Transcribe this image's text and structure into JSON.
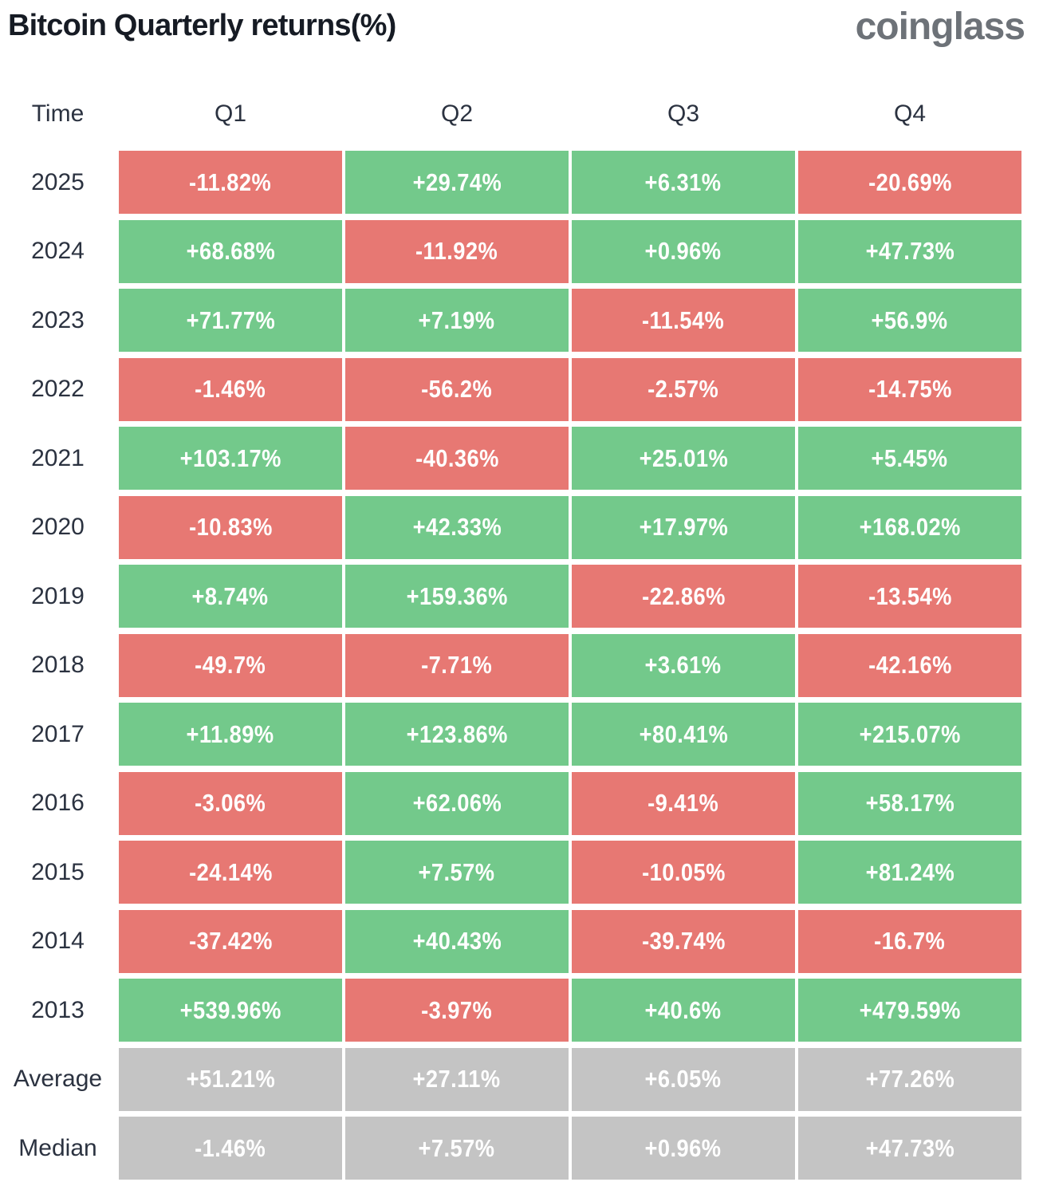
{
  "header": {
    "title": "Bitcoin Quarterly returns(%)",
    "logo": "coinglass"
  },
  "colors": {
    "positive": "#73c98b",
    "negative": "#e77873",
    "neutral": "#c4c4c4",
    "title_text": "#161b24",
    "label_text": "#2b3240",
    "logo_text": "#6d7278",
    "cell_text": "#ffffff"
  },
  "table": {
    "columns": [
      "Time",
      "Q1",
      "Q2",
      "Q3",
      "Q4"
    ],
    "rows": [
      {
        "label": "2025",
        "cells": [
          {
            "v": "-11.82%",
            "t": "neg"
          },
          {
            "v": "+29.74%",
            "t": "pos"
          },
          {
            "v": "+6.31%",
            "t": "pos"
          },
          {
            "v": "-20.69%",
            "t": "neg"
          }
        ]
      },
      {
        "label": "2024",
        "cells": [
          {
            "v": "+68.68%",
            "t": "pos"
          },
          {
            "v": "-11.92%",
            "t": "neg"
          },
          {
            "v": "+0.96%",
            "t": "pos"
          },
          {
            "v": "+47.73%",
            "t": "pos"
          }
        ]
      },
      {
        "label": "2023",
        "cells": [
          {
            "v": "+71.77%",
            "t": "pos"
          },
          {
            "v": "+7.19%",
            "t": "pos"
          },
          {
            "v": "-11.54%",
            "t": "neg"
          },
          {
            "v": "+56.9%",
            "t": "pos"
          }
        ]
      },
      {
        "label": "2022",
        "cells": [
          {
            "v": "-1.46%",
            "t": "neg"
          },
          {
            "v": "-56.2%",
            "t": "neg"
          },
          {
            "v": "-2.57%",
            "t": "neg"
          },
          {
            "v": "-14.75%",
            "t": "neg"
          }
        ]
      },
      {
        "label": "2021",
        "cells": [
          {
            "v": "+103.17%",
            "t": "pos"
          },
          {
            "v": "-40.36%",
            "t": "neg"
          },
          {
            "v": "+25.01%",
            "t": "pos"
          },
          {
            "v": "+5.45%",
            "t": "pos"
          }
        ]
      },
      {
        "label": "2020",
        "cells": [
          {
            "v": "-10.83%",
            "t": "neg"
          },
          {
            "v": "+42.33%",
            "t": "pos"
          },
          {
            "v": "+17.97%",
            "t": "pos"
          },
          {
            "v": "+168.02%",
            "t": "pos"
          }
        ]
      },
      {
        "label": "2019",
        "cells": [
          {
            "v": "+8.74%",
            "t": "pos"
          },
          {
            "v": "+159.36%",
            "t": "pos"
          },
          {
            "v": "-22.86%",
            "t": "neg"
          },
          {
            "v": "-13.54%",
            "t": "neg"
          }
        ]
      },
      {
        "label": "2018",
        "cells": [
          {
            "v": "-49.7%",
            "t": "neg"
          },
          {
            "v": "-7.71%",
            "t": "neg"
          },
          {
            "v": "+3.61%",
            "t": "pos"
          },
          {
            "v": "-42.16%",
            "t": "neg"
          }
        ]
      },
      {
        "label": "2017",
        "cells": [
          {
            "v": "+11.89%",
            "t": "pos"
          },
          {
            "v": "+123.86%",
            "t": "pos"
          },
          {
            "v": "+80.41%",
            "t": "pos"
          },
          {
            "v": "+215.07%",
            "t": "pos"
          }
        ]
      },
      {
        "label": "2016",
        "cells": [
          {
            "v": "-3.06%",
            "t": "neg"
          },
          {
            "v": "+62.06%",
            "t": "pos"
          },
          {
            "v": "-9.41%",
            "t": "neg"
          },
          {
            "v": "+58.17%",
            "t": "pos"
          }
        ]
      },
      {
        "label": "2015",
        "cells": [
          {
            "v": "-24.14%",
            "t": "neg"
          },
          {
            "v": "+7.57%",
            "t": "pos"
          },
          {
            "v": "-10.05%",
            "t": "neg"
          },
          {
            "v": "+81.24%",
            "t": "pos"
          }
        ]
      },
      {
        "label": "2014",
        "cells": [
          {
            "v": "-37.42%",
            "t": "neg"
          },
          {
            "v": "+40.43%",
            "t": "pos"
          },
          {
            "v": "-39.74%",
            "t": "neg"
          },
          {
            "v": "-16.7%",
            "t": "neg"
          }
        ]
      },
      {
        "label": "2013",
        "cells": [
          {
            "v": "+539.96%",
            "t": "pos"
          },
          {
            "v": "-3.97%",
            "t": "neg"
          },
          {
            "v": "+40.6%",
            "t": "pos"
          },
          {
            "v": "+479.59%",
            "t": "pos"
          }
        ]
      },
      {
        "label": "Average",
        "cells": [
          {
            "v": "+51.21%",
            "t": "neu"
          },
          {
            "v": "+27.11%",
            "t": "neu"
          },
          {
            "v": "+6.05%",
            "t": "neu"
          },
          {
            "v": "+77.26%",
            "t": "neu"
          }
        ]
      },
      {
        "label": "Median",
        "cells": [
          {
            "v": "-1.46%",
            "t": "neu"
          },
          {
            "v": "+7.57%",
            "t": "neu"
          },
          {
            "v": "+0.96%",
            "t": "neu"
          },
          {
            "v": "+47.73%",
            "t": "neu"
          }
        ]
      }
    ]
  },
  "chart_data": {
    "type": "heatmap",
    "title": "Bitcoin Quarterly returns(%)",
    "columns": [
      "Q1",
      "Q2",
      "Q3",
      "Q4"
    ],
    "rows": [
      "2025",
      "2024",
      "2023",
      "2022",
      "2021",
      "2020",
      "2019",
      "2018",
      "2017",
      "2016",
      "2015",
      "2014",
      "2013",
      "Average",
      "Median"
    ],
    "values_pct": [
      [
        -11.82,
        29.74,
        6.31,
        -20.69
      ],
      [
        68.68,
        -11.92,
        0.96,
        47.73
      ],
      [
        71.77,
        7.19,
        -11.54,
        56.9
      ],
      [
        -1.46,
        -56.2,
        -2.57,
        -14.75
      ],
      [
        103.17,
        -40.36,
        25.01,
        5.45
      ],
      [
        -10.83,
        42.33,
        17.97,
        168.02
      ],
      [
        8.74,
        159.36,
        -22.86,
        -13.54
      ],
      [
        -49.7,
        -7.71,
        3.61,
        -42.16
      ],
      [
        11.89,
        123.86,
        80.41,
        215.07
      ],
      [
        -3.06,
        62.06,
        -9.41,
        58.17
      ],
      [
        -24.14,
        7.57,
        -10.05,
        81.24
      ],
      [
        -37.42,
        40.43,
        -39.74,
        -16.7
      ],
      [
        539.96,
        -3.97,
        40.6,
        479.59
      ],
      [
        51.21,
        27.11,
        6.05,
        77.26
      ],
      [
        -1.46,
        7.57,
        0.96,
        47.73
      ]
    ],
    "color_rule": "positive=green, negative=red, summary rows (Average/Median)=gray",
    "legend": "none",
    "grid": "white gaps between cells"
  }
}
